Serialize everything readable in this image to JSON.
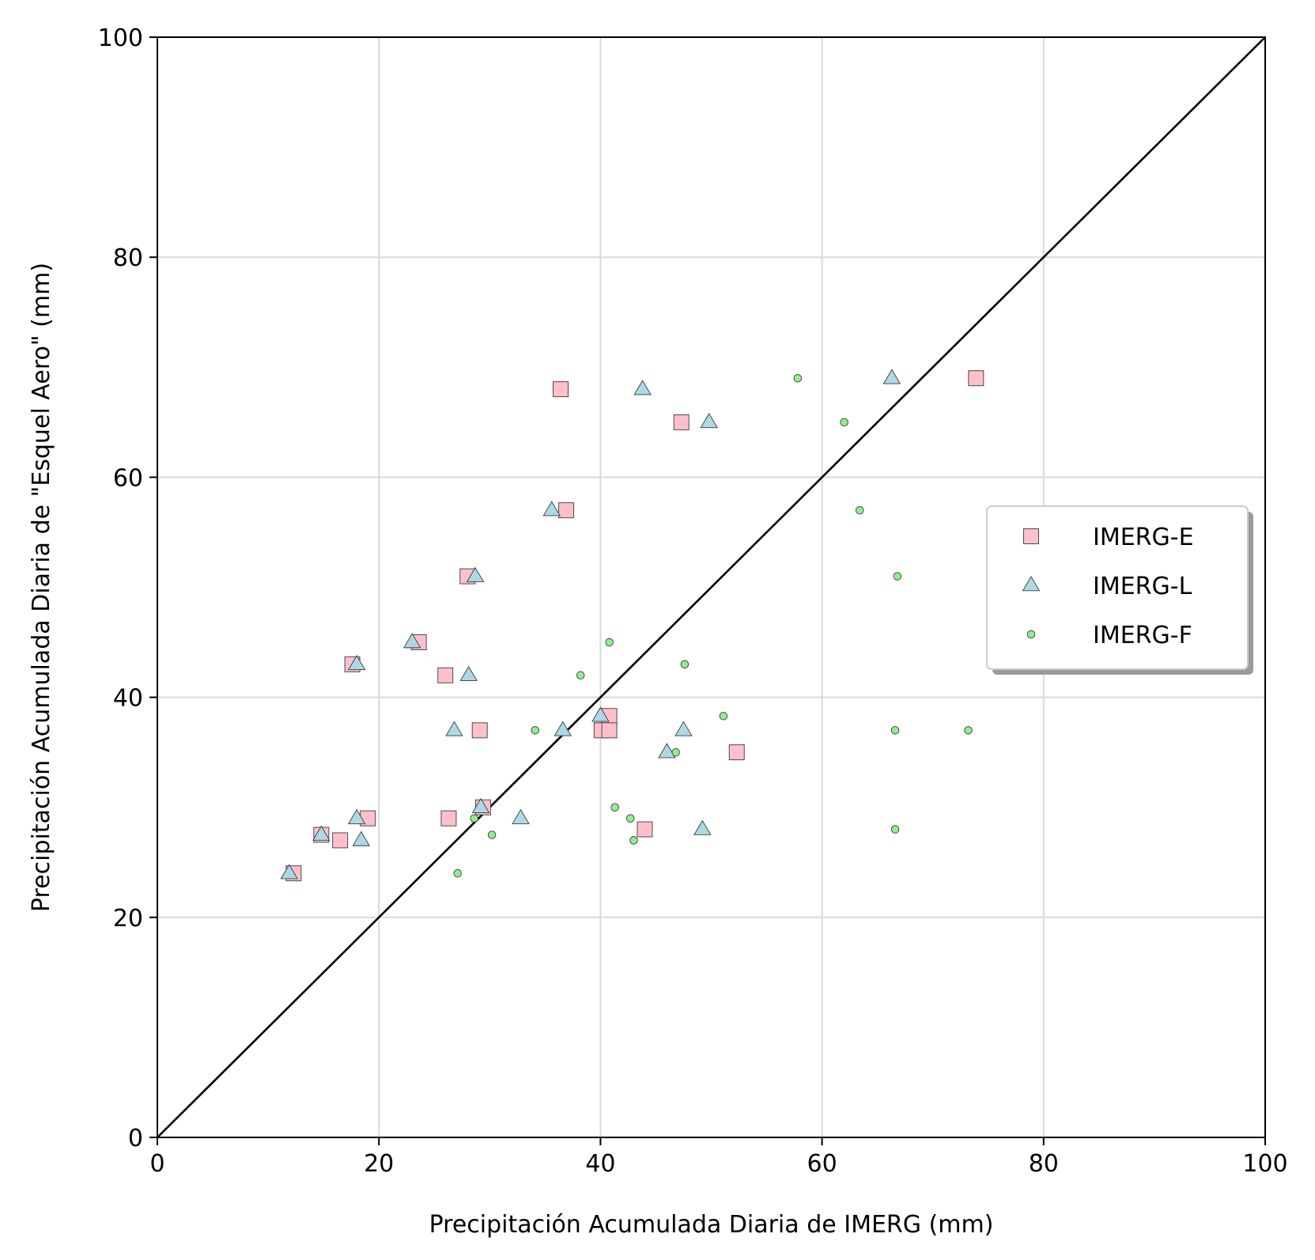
{
  "chart_data": {
    "type": "scatter",
    "title": "",
    "xlabel": "Precipitación Acumulada Diaria de IMERG (mm)",
    "ylabel": "Precipitación Acumulada Diaria de \"Esquel Aero\" (mm)",
    "xlim": [
      0,
      100
    ],
    "ylim": [
      0,
      100
    ],
    "xticks": [
      "0",
      "20",
      "40",
      "60",
      "80",
      "100"
    ],
    "yticks": [
      "0",
      "20",
      "40",
      "60",
      "80",
      "100"
    ],
    "grid": true,
    "legend_position": "center-right",
    "reference_line": "y = x",
    "series": [
      {
        "name": "IMERG-E",
        "marker": "square",
        "color": "#ffc0cb",
        "points": [
          [
            36.4,
            68
          ],
          [
            73.9,
            69
          ],
          [
            47.3,
            65
          ],
          [
            36.9,
            57
          ],
          [
            28.0,
            51
          ],
          [
            23.6,
            45
          ],
          [
            17.6,
            43
          ],
          [
            26.0,
            42
          ],
          [
            40.8,
            38.3
          ],
          [
            40.1,
            37
          ],
          [
            40.8,
            37
          ],
          [
            29.1,
            37
          ],
          [
            52.3,
            35
          ],
          [
            29.4,
            30
          ],
          [
            26.3,
            29
          ],
          [
            19.0,
            29
          ],
          [
            14.8,
            27.5
          ],
          [
            16.5,
            27
          ],
          [
            44.0,
            28
          ],
          [
            12.3,
            24
          ]
        ]
      },
      {
        "name": "IMERG-L",
        "marker": "triangle",
        "color": "#add8e6",
        "points": [
          [
            43.8,
            68
          ],
          [
            66.3,
            69
          ],
          [
            49.8,
            65
          ],
          [
            35.6,
            57
          ],
          [
            28.7,
            51
          ],
          [
            23.0,
            45
          ],
          [
            18.0,
            43
          ],
          [
            28.1,
            42
          ],
          [
            40.0,
            38.3
          ],
          [
            26.8,
            37
          ],
          [
            36.6,
            37
          ],
          [
            47.5,
            37
          ],
          [
            46.0,
            35
          ],
          [
            29.2,
            30
          ],
          [
            32.8,
            29
          ],
          [
            18.0,
            29
          ],
          [
            14.8,
            27.5
          ],
          [
            18.4,
            27
          ],
          [
            49.2,
            28
          ],
          [
            11.9,
            24
          ]
        ]
      },
      {
        "name": "IMERG-F",
        "marker": "circle",
        "color": "#90ee90",
        "points": [
          [
            57.8,
            69
          ],
          [
            62.0,
            65
          ],
          [
            63.4,
            57
          ],
          [
            66.8,
            51
          ],
          [
            40.8,
            45
          ],
          [
            47.6,
            43
          ],
          [
            38.2,
            42
          ],
          [
            51.1,
            38.3
          ],
          [
            34.1,
            37
          ],
          [
            66.6,
            37
          ],
          [
            73.2,
            37
          ],
          [
            46.8,
            35
          ],
          [
            41.3,
            30
          ],
          [
            28.6,
            29
          ],
          [
            42.7,
            29
          ],
          [
            30.2,
            27.5
          ],
          [
            43.0,
            27
          ],
          [
            66.6,
            28
          ],
          [
            27.1,
            24
          ]
        ]
      }
    ]
  }
}
